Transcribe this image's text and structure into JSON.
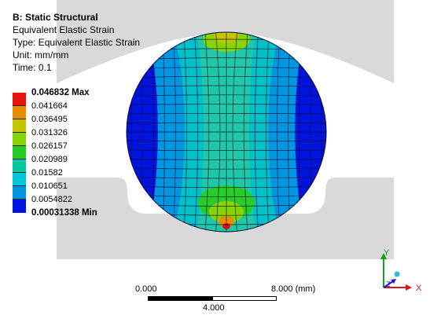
{
  "info": {
    "title": "B: Static Structural",
    "result_name": "Equivalent Elastic Strain",
    "type_line": "Type: Equivalent Elastic Strain",
    "unit_line": "Unit: mm/mm",
    "time_line": "Time: 0.1"
  },
  "legend": {
    "max_label": "0.046832 Max",
    "min_label": "0.00031338 Min",
    "values": [
      "0.041664",
      "0.036495",
      "0.031326",
      "0.026157",
      "0.020989",
      "0.01582",
      "0.010651",
      "0.0054822"
    ],
    "colors": [
      "#e8120f",
      "#e88c00",
      "#c4c400",
      "#88d400",
      "#28cc28",
      "#00c8a0",
      "#00c8d8",
      "#0096e0",
      "#0014e0"
    ]
  },
  "scale": {
    "left_label": "0.000",
    "right_label": "8.000 (mm)",
    "middle_label": "4.000"
  },
  "triad": {
    "y_label": "Y",
    "z_label": "Z",
    "x_label": "X",
    "y_color": "#1aa01a",
    "x_color": "#d41a1a",
    "z_color": "#1a1ad4"
  }
}
